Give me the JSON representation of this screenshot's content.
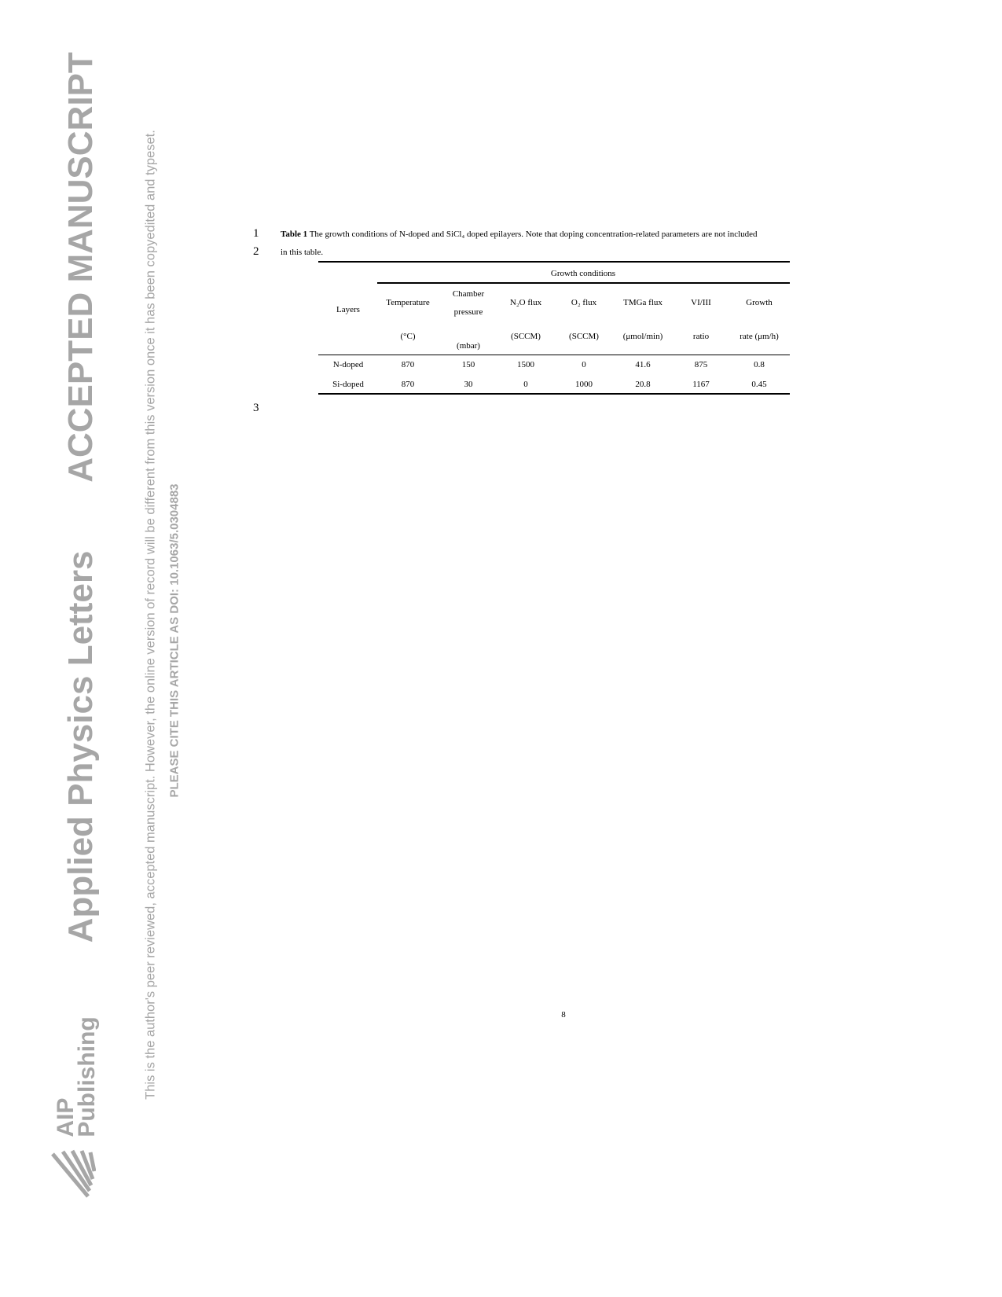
{
  "sidebar": {
    "journal": "Applied Physics Letters",
    "status": "ACCEPTED MANUSCRIPT",
    "notice": "This is the author's peer reviewed, accepted manuscript. However, the online version of record will be different from this version once it has been copyedited and typeset.",
    "cite": "PLEASE CITE THIS ARTICLE AS DOI: 10.1063/5.0304883",
    "publisher_line1": "AIP",
    "publisher_line2": "Publishing"
  },
  "line_numbers": [
    "1",
    "2",
    "3"
  ],
  "caption": {
    "label": "Table 1",
    "text_line1": " The growth conditions of N-doped and SiCl₄ doped epilayers. Note that doping concentration-related parameters are not included",
    "text_line2": "in this table."
  },
  "table": {
    "group_header": "Growth conditions",
    "columns": [
      {
        "l1": "Layers",
        "l2": "",
        "l3": ""
      },
      {
        "l1": "Temperature",
        "l2": "(°C)",
        "l3": ""
      },
      {
        "l1": "Chamber",
        "l2": "pressure",
        "l3": "(mbar)"
      },
      {
        "l1": "N₂O flux",
        "l2": "(SCCM)",
        "l3": ""
      },
      {
        "l1": "O₂ flux",
        "l2": "(SCCM)",
        "l3": ""
      },
      {
        "l1": "TMGa flux",
        "l2": "(μmol/min)",
        "l3": ""
      },
      {
        "l1": "VI/III",
        "l2": "ratio",
        "l3": ""
      },
      {
        "l1": "Growth",
        "l2": "rate (μm/h)",
        "l3": ""
      }
    ],
    "rows": [
      [
        "N-doped",
        "870",
        "150",
        "1500",
        "0",
        "41.6",
        "875",
        "0.8"
      ],
      [
        "Si-doped",
        "870",
        "30",
        "0",
        "1000",
        "20.8",
        "1167",
        "0.45"
      ]
    ]
  },
  "page_number": "8"
}
